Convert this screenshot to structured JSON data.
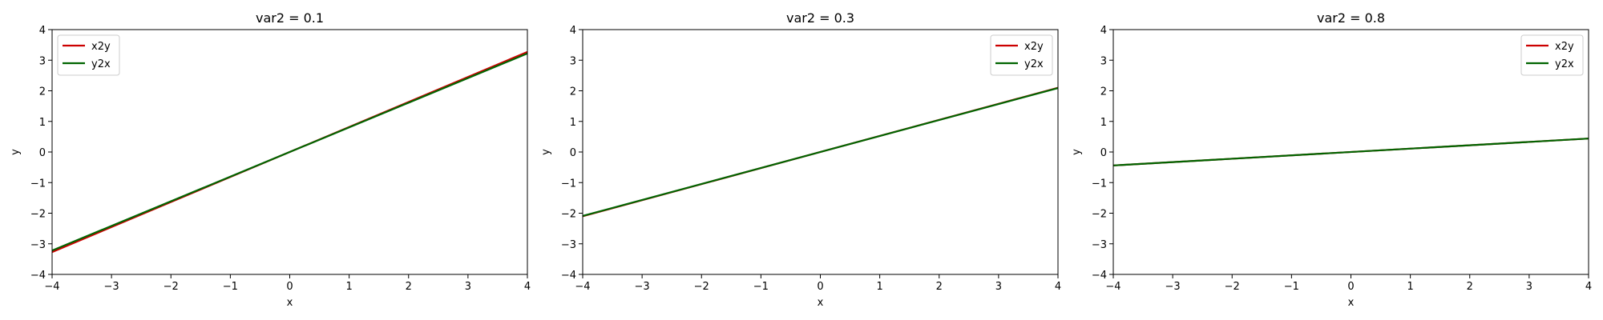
{
  "chart_data": [
    {
      "type": "line",
      "title": "var2 = 0.1",
      "xlabel": "x",
      "ylabel": "y",
      "xlim": [
        -4,
        4
      ],
      "ylim": [
        -4,
        4
      ],
      "xticks": [
        "−4",
        "−3",
        "−2",
        "−1",
        "0",
        "1",
        "2",
        "3",
        "4"
      ],
      "yticks": [
        "−4",
        "−3",
        "−2",
        "−1",
        "0",
        "1",
        "2",
        "3",
        "4"
      ],
      "legend_position": "top-left",
      "series": [
        {
          "name": "x2y",
          "color": "#cc0000",
          "x": [
            -4,
            4
          ],
          "y": [
            -3.27,
            3.27
          ]
        },
        {
          "name": "y2x",
          "color": "#006400",
          "x": [
            -4,
            4
          ],
          "y": [
            -3.22,
            3.22
          ]
        }
      ]
    },
    {
      "type": "line",
      "title": "var2 = 0.3",
      "xlabel": "x",
      "ylabel": "y",
      "xlim": [
        -4,
        4
      ],
      "ylim": [
        -4,
        4
      ],
      "xticks": [
        "−4",
        "−3",
        "−2",
        "−1",
        "0",
        "1",
        "2",
        "3",
        "4"
      ],
      "yticks": [
        "−4",
        "−3",
        "−2",
        "−1",
        "0",
        "1",
        "2",
        "3",
        "4"
      ],
      "legend_position": "top-right",
      "series": [
        {
          "name": "x2y",
          "color": "#cc0000",
          "x": [
            -4,
            4
          ],
          "y": [
            -2.1,
            2.1
          ]
        },
        {
          "name": "y2x",
          "color": "#006400",
          "x": [
            -4,
            4
          ],
          "y": [
            -2.09,
            2.09
          ]
        }
      ]
    },
    {
      "type": "line",
      "title": "var2 = 0.8",
      "xlabel": "x",
      "ylabel": "y",
      "xlim": [
        -4,
        4
      ],
      "ylim": [
        -4,
        4
      ],
      "xticks": [
        "−4",
        "−3",
        "−2",
        "−1",
        "0",
        "1",
        "2",
        "3",
        "4"
      ],
      "yticks": [
        "−4",
        "−3",
        "−2",
        "−1",
        "0",
        "1",
        "2",
        "3",
        "4"
      ],
      "legend_position": "top-right",
      "series": [
        {
          "name": "x2y",
          "color": "#cc0000",
          "x": [
            -4,
            4
          ],
          "y": [
            -0.44,
            0.44
          ]
        },
        {
          "name": "y2x",
          "color": "#006400",
          "x": [
            -4,
            4
          ],
          "y": [
            -0.44,
            0.44
          ]
        }
      ]
    }
  ]
}
